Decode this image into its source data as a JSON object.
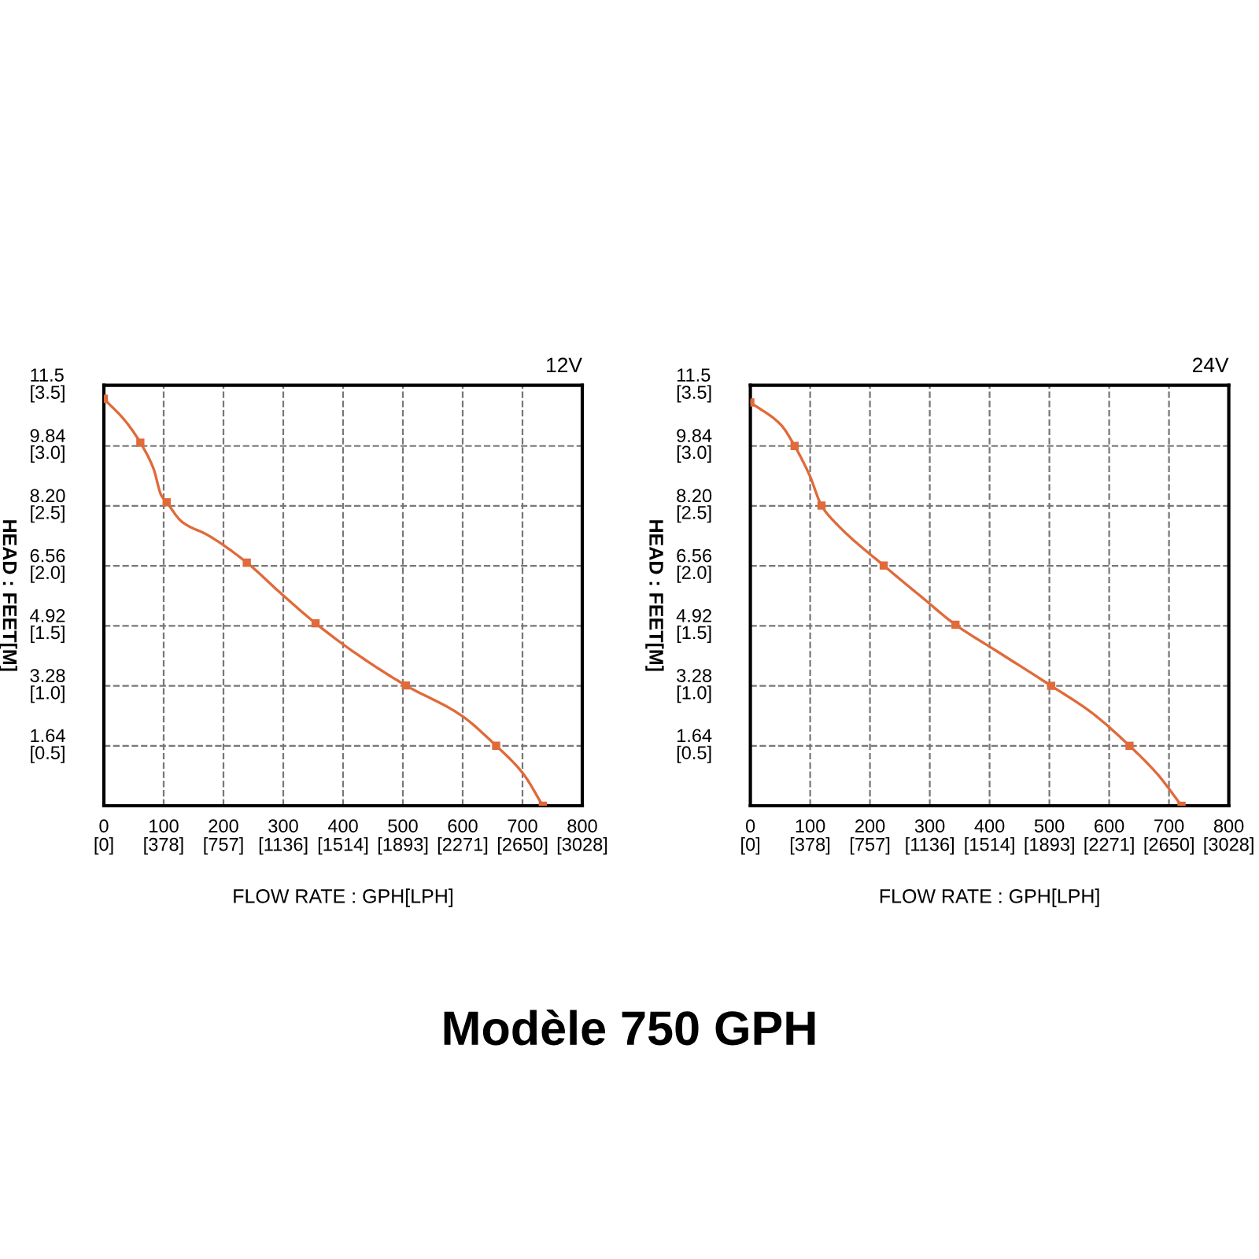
{
  "chart_data": [
    {
      "type": "line",
      "title": "12V",
      "xlabel": "FLOW RATE : GPH[LPH]",
      "ylabel": "HEAD : FEET[M]",
      "x": [
        0,
        61,
        105,
        239,
        354,
        505,
        656,
        734
      ],
      "series": [
        {
          "color": "#e06a3a",
          "x": [
            0,
            35,
            61,
            83,
            96,
            105,
            131,
            175,
            239,
            298,
            354,
            421,
            505,
            596,
            656,
            701,
            734
          ],
          "values": [
            11.13,
            10.54,
            9.93,
            9.22,
            8.49,
            8.3,
            7.76,
            7.39,
            6.65,
            5.78,
            4.99,
            4.17,
            3.29,
            2.49,
            1.64,
            0.88,
            0
          ]
        },
        {
          "type": "scatter",
          "marker": "square",
          "color": "#e06a3a",
          "values": [
            11.13,
            9.93,
            8.3,
            6.65,
            4.99,
            3.29,
            1.64,
            0
          ]
        }
      ],
      "xlim": [
        0,
        800
      ],
      "ylim": [
        0,
        11.5
      ],
      "xticks": [
        0,
        100,
        200,
        300,
        400,
        500,
        600,
        700,
        800
      ],
      "yticks": [
        1.64,
        3.28,
        4.92,
        6.56,
        {
          "value": 8.2,
          "label": "8.20"
        },
        9.84,
        11.5
      ],
      "x2lim": [
        0,
        3028
      ],
      "x2ticks": [
        {
          "value": 0,
          "label": "[0]"
        },
        {
          "value": 378,
          "label": "[378]"
        },
        {
          "value": 757,
          "label": "[757]"
        },
        {
          "value": 1136,
          "label": "[1136]"
        },
        {
          "value": 1514,
          "label": "[1514]"
        },
        {
          "value": 1893,
          "label": "[1893]"
        },
        {
          "value": 2271,
          "label": "[2271]"
        },
        {
          "value": 2650,
          "label": "[2650]"
        },
        {
          "value": 3028,
          "label": "[3028]"
        }
      ],
      "y2lim": [
        0,
        3.5
      ],
      "y2ticks": [
        {
          "value": 0.5,
          "label": "[0.5]"
        },
        {
          "value": 1.0,
          "label": "[1.0]"
        },
        {
          "value": 1.5,
          "label": "[1.5]"
        },
        {
          "value": 2.0,
          "label": "[2.0]"
        },
        {
          "value": 2.5,
          "label": "[2.5]"
        },
        {
          "value": 3.0,
          "label": "[3.0]"
        },
        {
          "value": 3.5,
          "label": "[3.5]"
        }
      ],
      "grid": true,
      "line_style": "solid",
      "annotations": [
        "Modèle 750 GPH"
      ]
    },
    {
      "type": "line",
      "title": "24V",
      "xlabel": "FLOW RATE : GPH[LPH]",
      "ylabel": "HEAD : FEET[M]",
      "x": [
        0,
        74,
        119,
        223,
        343,
        503,
        634,
        721
      ],
      "series": [
        {
          "color": "#e06a3a",
          "x": [
            0,
            51,
            74,
            99,
            119,
            147,
            223,
            287,
            343,
            410,
            503,
            568,
            634,
            682,
            721
          ],
          "values": [
            11.03,
            10.42,
            9.84,
            9.04,
            8.21,
            7.66,
            6.57,
            5.7,
            4.95,
            4.25,
            3.28,
            2.58,
            1.64,
            0.84,
            0
          ]
        },
        {
          "type": "scatter",
          "marker": "square",
          "color": "#e06a3a",
          "values": [
            11.03,
            9.84,
            8.21,
            6.57,
            4.95,
            3.28,
            1.64,
            0
          ]
        }
      ],
      "xlim": [
        0,
        800
      ],
      "ylim": [
        0,
        11.5
      ],
      "xticks": [
        0,
        100,
        200,
        300,
        400,
        500,
        600,
        700,
        800
      ],
      "yticks": [
        1.64,
        3.28,
        4.92,
        6.56,
        {
          "value": 8.2,
          "label": "8.20"
        },
        9.84,
        11.5
      ],
      "x2lim": [
        0,
        3028
      ],
      "x2ticks": [
        {
          "value": 0,
          "label": "[0]"
        },
        {
          "value": 378,
          "label": "[378]"
        },
        {
          "value": 757,
          "label": "[757]"
        },
        {
          "value": 1136,
          "label": "[1136]"
        },
        {
          "value": 1514,
          "label": "[1514]"
        },
        {
          "value": 1893,
          "label": "[1893]"
        },
        {
          "value": 2271,
          "label": "[2271]"
        },
        {
          "value": 2650,
          "label": "[2650]"
        },
        {
          "value": 3028,
          "label": "[3028]"
        }
      ],
      "y2lim": [
        0,
        3.5
      ],
      "y2ticks": [
        {
          "value": 0.5,
          "label": "[0.5]"
        },
        {
          "value": 1.0,
          "label": "[1.0]"
        },
        {
          "value": 1.5,
          "label": "[1.5]"
        },
        {
          "value": 2.0,
          "label": "[2.0]"
        },
        {
          "value": 2.5,
          "label": "[2.5]"
        },
        {
          "value": 3.0,
          "label": "[3.0]"
        },
        {
          "value": 3.5,
          "label": "[3.5]"
        }
      ],
      "grid": true,
      "line_style": "solid"
    }
  ]
}
